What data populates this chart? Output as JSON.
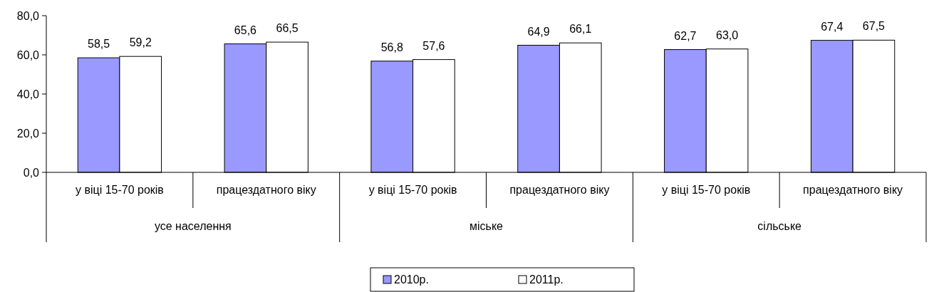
{
  "chart_data": {
    "type": "bar",
    "categories": [
      "у віці 15-70 років",
      "працездатного віку",
      "у віці 15-70 років",
      "працездатного віку",
      "у віці 15-70 років",
      "працездатного віку"
    ],
    "series": [
      {
        "name": "2010р.",
        "color": "#9999ff",
        "values": [
          58.5,
          65.6,
          56.8,
          64.9,
          62.7,
          67.4
        ],
        "value_labels": [
          "58,5",
          "65,6",
          "56,8",
          "64,9",
          "62,7",
          "67,4"
        ]
      },
      {
        "name": "2011р.",
        "color": "#ffffff",
        "values": [
          59.2,
          66.5,
          57.6,
          66.1,
          63.0,
          67.5
        ],
        "value_labels": [
          "59,2",
          "66,5",
          "57,6",
          "66,1",
          "63,0",
          "67,5"
        ]
      }
    ],
    "annotations": [
      "усе населення",
      "міське",
      "сільське"
    ],
    "ylim": [
      0,
      80
    ],
    "yticks": [
      {
        "value": 0,
        "label": "0,0"
      },
      {
        "value": 20,
        "label": "20,0"
      },
      {
        "value": 40,
        "label": "40,0"
      },
      {
        "value": 60,
        "label": "60,0"
      },
      {
        "value": 80,
        "label": "80,0"
      }
    ],
    "legend": "bottom"
  }
}
